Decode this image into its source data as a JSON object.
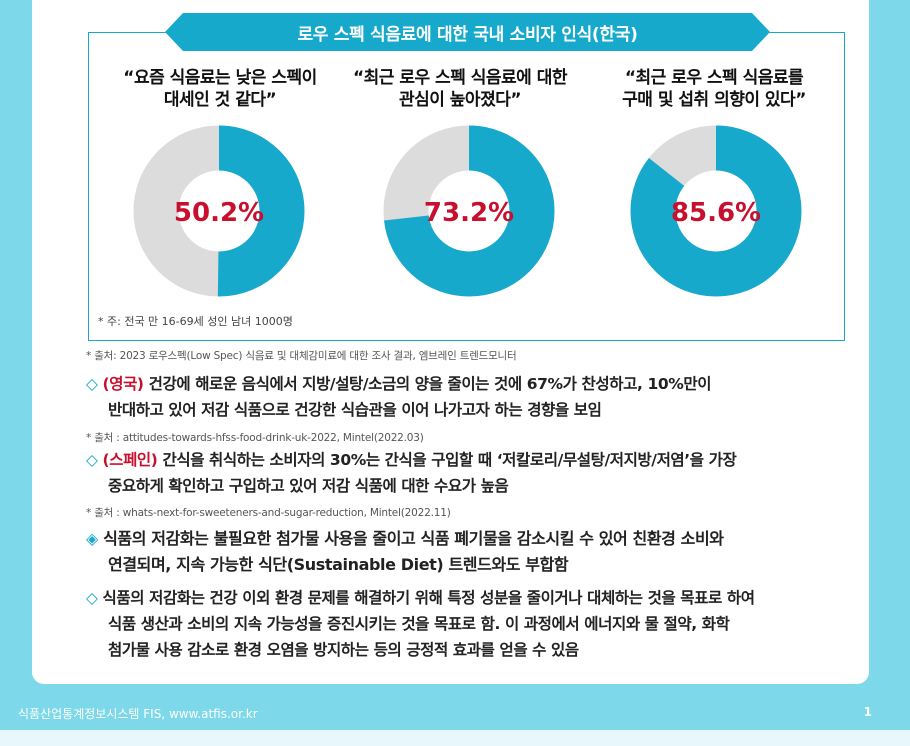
{
  "banner_title": "로우 스펙 식음료에 대한 국내 소비자 인식(한국)",
  "colors": {
    "accent": "#17a9cc",
    "highlight": "#c8102e",
    "remainder": "#dcdcdc",
    "page_bg": "#7dd8ea"
  },
  "survey": [
    {
      "quote_line1": "“요즘 식음료는 낮은 스펙이",
      "quote_line2": "대세인 것 같다”",
      "percent_label": "50.2%",
      "percent": 50.2
    },
    {
      "quote_line1": "“최근 로우 스펙 식음료에 대한",
      "quote_line2": "관심이 높아졌다”",
      "percent_label": "73.2%",
      "percent": 73.2
    },
    {
      "quote_line1": "“최근 로우 스펙 식음료를",
      "quote_line2": "구매 및 섭취 의향이 있다”",
      "percent_label": "85.6%",
      "percent": 85.6
    }
  ],
  "note_inbox": "* 주: 전국 만 16-69세 성인 남녀 1000명",
  "source1": "* 출처: 2023 로우스펙(Low Spec) 식음료 및 대체감미료에 대한 조사 결과, 엠브레인 트렌드모니터",
  "para_uk": {
    "marker": "◇",
    "country": "(영국)",
    "line1": " 건강에 해로운 음식에서 지방/설탕/소금의 양을 줄이는 것에 67%가 찬성하고, 10%만이",
    "line2": "반대하고 있어 저감 식품으로 건강한 식습관을 이어 나가고자 하는 경향을 보임"
  },
  "source_uk": "* 출처 : attitudes-towards-hfss-food-drink-uk-2022, Mintel(2022.03)",
  "para_es": {
    "marker": "◇",
    "country": "(스페인)",
    "line1": " 간식을 취식하는 소비자의 30%는 간식을 구입할 때 ‘저칼로리/무설탕/저지방/저염’을 가장",
    "line2": "중요하게 확인하고 구입하고 있어 저감 식품에 대한 수요가 높음"
  },
  "source_es": "* 출처 : whats-next-for-sweeteners-and-sugar-reduction, Mintel(2022.11)",
  "para_env": {
    "marker": "◈",
    "line1": "식품의 저감화는 불필요한 첨가물 사용을 줄이고 식품 폐기물을 감소시킬 수 있어 친환경 소비와",
    "line2": "연결되며, 지속 가능한 식단(Sustainable Diet) 트렌드와도 부합함"
  },
  "para_sustain": {
    "marker": "◇",
    "line1": "식품의 저감화는 건강 이외 환경 문제를 해결하기 위해 특정 성분을 줄이거나 대체하는 것을 목표로 하여",
    "line2": "식품 생산과 소비의 지속 가능성을 증진시키는 것을 목표로 함. 이 과정에서 에너지와 물 절약, 화학",
    "line3": "첨가물 사용 감소로 환경 오염을 방지하는 등의 긍정적 효과를 얻을 수 있음"
  },
  "footer": {
    "text": "식품산업통계정보시스템 FIS, www.atfis.or.kr",
    "page": "1"
  }
}
